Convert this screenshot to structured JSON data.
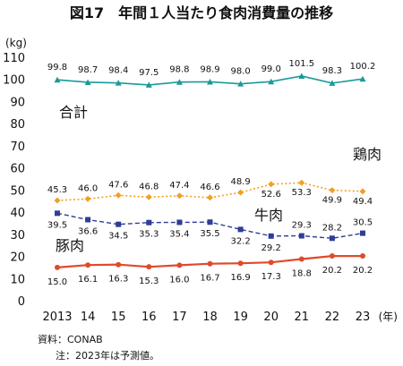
{
  "header": {
    "title": "図17　年間１人当たり食肉消費量の推移"
  },
  "chart_data": {
    "type": "line",
    "ylabel": "(kg)",
    "xunit": "(年)",
    "x": [
      2013,
      2014,
      2015,
      2016,
      2017,
      2018,
      2019,
      2020,
      2021,
      2022,
      2023
    ],
    "xtick_labels": [
      "2013",
      "14",
      "15",
      "16",
      "17",
      "18",
      "19",
      "20",
      "21",
      "22",
      "23"
    ],
    "ylim": [
      0,
      110
    ],
    "yticks": [
      0,
      10,
      20,
      30,
      40,
      50,
      60,
      70,
      80,
      90,
      100,
      110
    ],
    "grid": false,
    "series": [
      {
        "name": "合計",
        "color": "#1a9a9a",
        "style": "solid",
        "marker": "triangle",
        "values": [
          99.8,
          98.7,
          98.4,
          97.5,
          98.8,
          98.9,
          98.0,
          99.0,
          101.5,
          98.3,
          100.2
        ]
      },
      {
        "name": "鶏肉",
        "color": "#f0a020",
        "style": "dotted",
        "marker": "diamond",
        "values": [
          45.3,
          46.0,
          47.6,
          46.8,
          47.4,
          46.6,
          48.9,
          52.6,
          53.3,
          49.9,
          49.4
        ]
      },
      {
        "name": "牛肉",
        "color": "#2e3d96",
        "style": "dashed",
        "marker": "square",
        "values": [
          39.5,
          36.6,
          34.5,
          35.3,
          35.4,
          35.5,
          32.2,
          29.2,
          29.3,
          28.2,
          30.5
        ]
      },
      {
        "name": "豚肉",
        "color": "#e04a2a",
        "style": "solid",
        "marker": "circle",
        "values": [
          15.0,
          16.1,
          16.3,
          15.3,
          16.0,
          16.7,
          16.9,
          17.3,
          18.8,
          20.2,
          20.2
        ]
      }
    ]
  },
  "notes": {
    "source": "資料：CONAB",
    "note": "注：2023年は予測値。"
  }
}
